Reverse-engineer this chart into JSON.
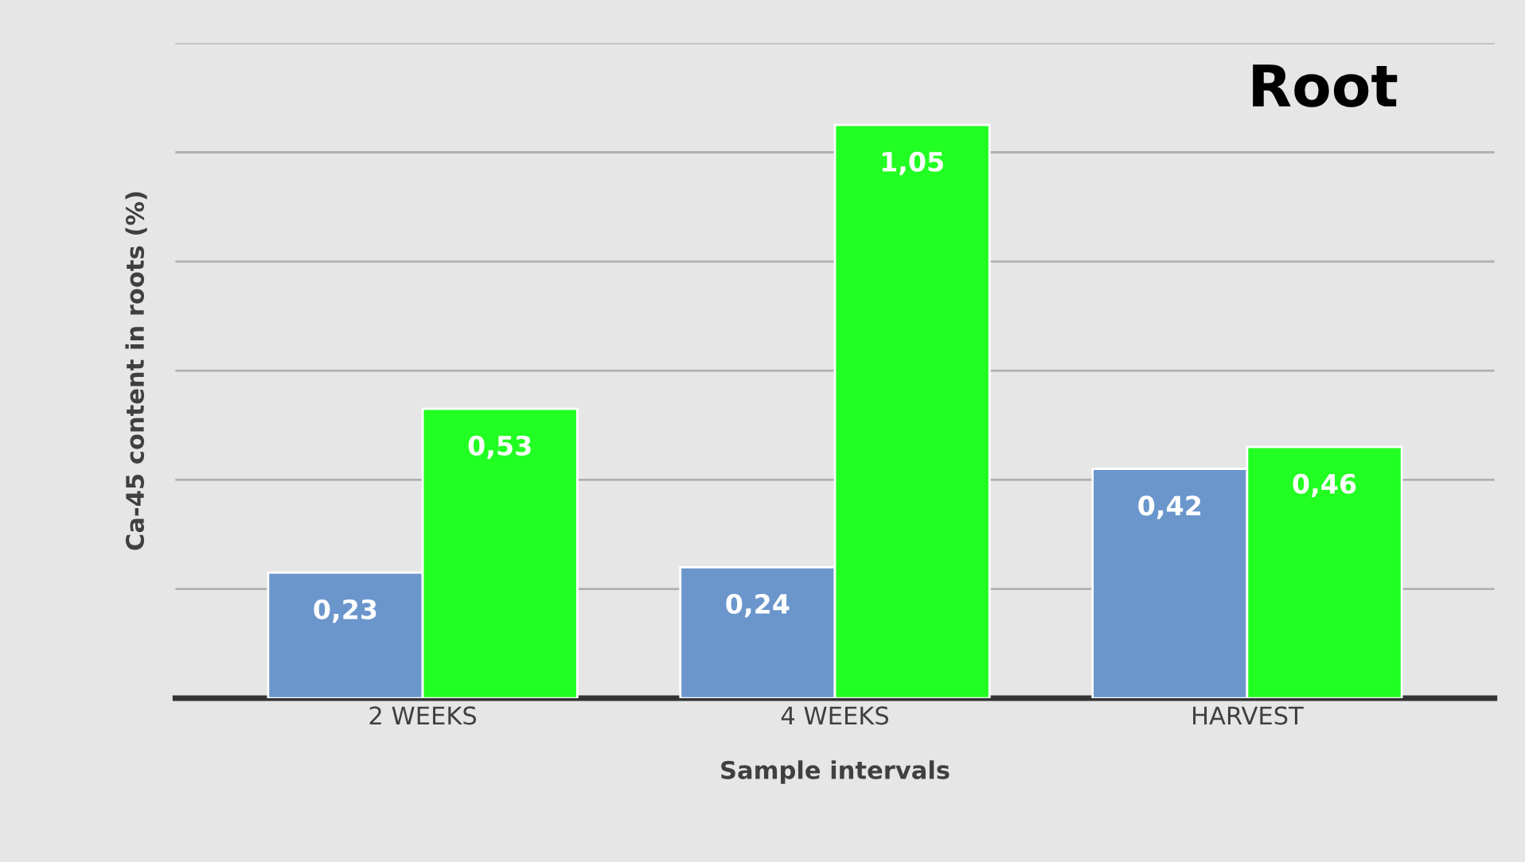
{
  "chart_data": {
    "type": "bar",
    "title": "Root",
    "xlabel": "Sample intervals",
    "ylabel": "Ca-45 content in roots (%)",
    "categories": [
      "2 WEEKS",
      "4 WEEKS",
      "HARVEST"
    ],
    "series": [
      {
        "color": "#6a96cc",
        "values": [
          0.23,
          0.24,
          0.42
        ],
        "value_labels": [
          "0,23",
          "0,24",
          "0,42"
        ]
      },
      {
        "color": "#22ff22",
        "values": [
          0.53,
          1.05,
          0.46
        ],
        "value_labels": [
          "0,53",
          "1,05",
          "0,46"
        ]
      }
    ],
    "ylim": [
      0,
      1.2
    ],
    "yticks": [
      {
        "value": 0,
        "label": null
      },
      {
        "value": 0.2,
        "label": null
      },
      {
        "value": 0.4,
        "label": null
      },
      {
        "value": 0.6,
        "label": null
      },
      {
        "value": 0.8,
        "label": null
      },
      {
        "value": 1.0,
        "label": null
      },
      {
        "value": 1.2,
        "label": null
      }
    ],
    "tick_labels": "x",
    "grid": "y",
    "legend": false
  }
}
